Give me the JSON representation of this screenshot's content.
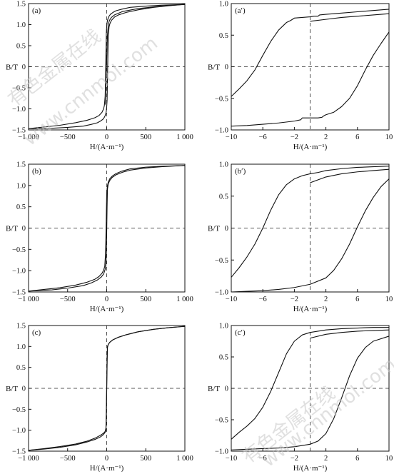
{
  "figure": {
    "watermark_cn": "有色金属在线",
    "watermark_url": "www.cnnmol.com"
  },
  "chart_data": [
    {
      "id": "a",
      "panel_label": "(a)",
      "type": "line",
      "xlabel": "H/(A·m⁻¹)",
      "ylabel": "B/T",
      "xlim": [
        -1000,
        1000
      ],
      "ylim": [
        -1.5,
        1.5
      ],
      "xticks": [
        -1000,
        -500,
        0,
        500,
        1000
      ],
      "xtick_labels": [
        "−1 000",
        "−500",
        "0",
        "500",
        "1 000"
      ],
      "yticks": [
        -1.5,
        -1.0,
        -0.5,
        0,
        0.5,
        1.0,
        1.5
      ],
      "ytick_labels": [
        "−1.5",
        "−1.0",
        "−0.5",
        "0",
        "0.5",
        "1.0",
        "1.5"
      ],
      "dashed_zero_lines": true,
      "series": [
        {
          "x": [
            -1000,
            -800,
            -600,
            -400,
            -250,
            -150,
            -100,
            -60,
            -40,
            -30,
            -20,
            -15,
            -10,
            -5,
            0,
            5,
            10,
            20,
            30,
            50,
            80,
            120,
            200,
            300,
            500,
            700,
            1000
          ],
          "y": [
            -1.47,
            -1.43,
            -1.39,
            -1.33,
            -1.27,
            -1.21,
            -1.16,
            -1.08,
            -1.0,
            -0.92,
            -0.7,
            -0.3,
            0.3,
            0.8,
            0.95,
            1.05,
            1.1,
            1.16,
            1.2,
            1.25,
            1.29,
            1.33,
            1.37,
            1.41,
            1.44,
            1.46,
            1.48
          ]
        },
        {
          "x": [
            1000,
            800,
            600,
            400,
            250,
            150,
            100,
            60,
            40,
            30,
            20,
            15,
            10,
            5,
            0,
            -5,
            -10,
            -20,
            -30,
            -50,
            -80,
            -120,
            -200,
            -300,
            -500,
            -700,
            -1000
          ],
          "y": [
            1.48,
            1.45,
            1.41,
            1.35,
            1.29,
            1.23,
            1.18,
            1.1,
            1.02,
            0.94,
            0.72,
            0.3,
            -0.3,
            -0.8,
            -0.95,
            -1.05,
            -1.1,
            -1.16,
            -1.2,
            -1.25,
            -1.29,
            -1.33,
            -1.37,
            -1.41,
            -1.44,
            -1.46,
            -1.47
          ]
        },
        {
          "x": [
            -20,
            -10,
            0,
            10,
            20,
            35,
            60,
            100,
            200,
            400,
            700,
            1000
          ],
          "y": [
            -0.9,
            -0.4,
            0.2,
            0.75,
            1.0,
            1.1,
            1.17,
            1.23,
            1.31,
            1.38,
            1.44,
            1.48
          ]
        }
      ]
    },
    {
      "id": "a2",
      "panel_label": "(a′)",
      "type": "line",
      "xlabel": "H/(A·m⁻¹)",
      "ylabel": "B/T",
      "xlim": [
        -10,
        10
      ],
      "ylim": [
        -1.0,
        1.0
      ],
      "xticks": [
        -10,
        -6,
        -2,
        2,
        6,
        10
      ],
      "xtick_labels": [
        "−10",
        "−6",
        "−2",
        "2",
        "6",
        "10"
      ],
      "yticks": [
        -1.0,
        -0.5,
        0,
        0.5,
        1.0
      ],
      "ytick_labels": [
        "−1.0",
        "−0.5",
        "0",
        "0.5",
        "1.0"
      ],
      "dashed_zero_lines": true,
      "series": [
        {
          "x": [
            10,
            8,
            6,
            4,
            2,
            1.2,
            1.0,
            0.5,
            0,
            -1,
            -2,
            -2.5,
            -3,
            -4,
            -5,
            -6,
            -7,
            -8,
            -9,
            -10
          ],
          "y": [
            0.91,
            0.89,
            0.87,
            0.85,
            0.83,
            0.82,
            0.8,
            0.8,
            0.79,
            0.78,
            0.77,
            0.73,
            0.7,
            0.58,
            0.4,
            0.18,
            -0.05,
            -0.22,
            -0.35,
            -0.47
          ]
        },
        {
          "x": [
            -10,
            -8,
            -6,
            -4,
            -2,
            -1.2,
            -1.0,
            0,
            1,
            1.5,
            1.7,
            2,
            3,
            4,
            5,
            6,
            7,
            8,
            9,
            10
          ],
          "y": [
            -0.94,
            -0.93,
            -0.91,
            -0.89,
            -0.86,
            -0.84,
            -0.81,
            -0.81,
            -0.81,
            -0.8,
            -0.78,
            -0.76,
            -0.72,
            -0.63,
            -0.5,
            -0.3,
            -0.05,
            0.18,
            0.37,
            0.55
          ]
        },
        {
          "x": [
            0,
            2,
            4,
            6,
            8,
            10
          ],
          "y": [
            0.72,
            0.75,
            0.78,
            0.8,
            0.82,
            0.84
          ]
        }
      ]
    },
    {
      "id": "b",
      "panel_label": "(b)",
      "type": "line",
      "xlabel": "H/(A·m⁻¹)",
      "ylabel": "B/T",
      "xlim": [
        -1000,
        1000
      ],
      "ylim": [
        -1.5,
        1.5
      ],
      "xticks": [
        -1000,
        -500,
        0,
        500,
        1000
      ],
      "xtick_labels": [
        "−1 000",
        "−500",
        "0",
        "500",
        "1 000"
      ],
      "yticks": [
        -1.5,
        -1.0,
        -0.5,
        0,
        0.5,
        1.0,
        1.5
      ],
      "ytick_labels": [
        "−1.5",
        "−1.0",
        "−0.5",
        "0",
        "0.5",
        "1.0",
        "1.5"
      ],
      "dashed_zero_lines": true,
      "series": [
        {
          "x": [
            -1000,
            -800,
            -600,
            -400,
            -250,
            -150,
            -100,
            -60,
            -40,
            -25,
            -15,
            -10,
            -5,
            0,
            5,
            10,
            20,
            40,
            70,
            120,
            200,
            300,
            500,
            700,
            1000
          ],
          "y": [
            -1.48,
            -1.44,
            -1.4,
            -1.34,
            -1.27,
            -1.2,
            -1.14,
            -1.06,
            -0.99,
            -0.9,
            -0.6,
            -0.2,
            0.3,
            0.8,
            0.92,
            1.0,
            1.08,
            1.16,
            1.22,
            1.28,
            1.34,
            1.39,
            1.43,
            1.45,
            1.47
          ]
        },
        {
          "x": [
            1000,
            700,
            500,
            300,
            200,
            120,
            70,
            40,
            20,
            10,
            5,
            0,
            -5,
            -10,
            -20,
            -40,
            -70,
            -120,
            -200,
            -300,
            -500,
            -700,
            -1000
          ],
          "y": [
            1.47,
            1.44,
            1.41,
            1.36,
            1.31,
            1.25,
            1.19,
            1.12,
            1.04,
            0.92,
            0.5,
            -0.1,
            -0.6,
            -0.85,
            -0.97,
            -1.08,
            -1.15,
            -1.22,
            -1.29,
            -1.35,
            -1.41,
            -1.45,
            -1.48
          ]
        }
      ]
    },
    {
      "id": "b2",
      "panel_label": "(b′)",
      "type": "line",
      "xlabel": "H/(A·m⁻¹)",
      "ylabel": "B/T",
      "xlim": [
        -10,
        10
      ],
      "ylim": [
        -1.0,
        1.0
      ],
      "xticks": [
        -10,
        -6,
        -2,
        2,
        6,
        10
      ],
      "xtick_labels": [
        "−10",
        "−6",
        "−2",
        "2",
        "6",
        "10"
      ],
      "yticks": [
        -1.0,
        -0.5,
        0,
        0.5,
        1.0
      ],
      "ytick_labels": [
        "−1.0",
        "−0.5",
        "0",
        "0.5",
        "1.0"
      ],
      "dashed_zero_lines": true,
      "series": [
        {
          "x": [
            10,
            8,
            6,
            4,
            2,
            1,
            0,
            -1,
            -2,
            -3,
            -4,
            -5,
            -6,
            -7,
            -8,
            -9,
            -10
          ],
          "y": [
            0.97,
            0.96,
            0.95,
            0.93,
            0.9,
            0.87,
            0.85,
            0.82,
            0.77,
            0.68,
            0.52,
            0.28,
            0.0,
            -0.25,
            -0.45,
            -0.62,
            -0.77
          ]
        },
        {
          "x": [
            -10,
            -8,
            -6,
            -4,
            -2,
            0,
            2,
            3,
            4,
            5,
            6,
            7,
            8,
            9,
            10
          ],
          "y": [
            -1.0,
            -0.99,
            -0.98,
            -0.96,
            -0.93,
            -0.88,
            -0.78,
            -0.66,
            -0.48,
            -0.25,
            0.02,
            0.27,
            0.48,
            0.65,
            0.77
          ]
        },
        {
          "x": [
            0,
            2,
            4,
            6,
            8,
            10
          ],
          "y": [
            0.71,
            0.8,
            0.85,
            0.88,
            0.9,
            0.92
          ]
        }
      ]
    },
    {
      "id": "c",
      "panel_label": "(c)",
      "type": "line",
      "xlabel": "H/(A·m⁻¹)",
      "ylabel": "B/T",
      "xlim": [
        -1000,
        1000
      ],
      "ylim": [
        -1.5,
        1.5
      ],
      "xticks": [
        -1000,
        -500,
        0,
        500,
        1000
      ],
      "xtick_labels": [
        "−1 000",
        "−500",
        "0",
        "500",
        "1 000"
      ],
      "yticks": [
        -1.5,
        -1.0,
        -0.5,
        0,
        0.5,
        1.0,
        1.5
      ],
      "ytick_labels": [
        "−1.5",
        "−1.0",
        "−0.5",
        "0",
        "0.5",
        "1.0",
        "1.5"
      ],
      "dashed_zero_lines": true,
      "series": [
        {
          "x": [
            -1000,
            -800,
            -600,
            -400,
            -250,
            -150,
            -80,
            -40,
            -20,
            -10,
            -5,
            0,
            5,
            10,
            20,
            40,
            80,
            150,
            250,
            400,
            600,
            800,
            1000
          ],
          "y": [
            -1.48,
            -1.44,
            -1.39,
            -1.33,
            -1.26,
            -1.19,
            -1.12,
            -1.07,
            -1.03,
            -0.95,
            -0.5,
            0.1,
            0.8,
            1.0,
            1.05,
            1.1,
            1.16,
            1.22,
            1.28,
            1.35,
            1.41,
            1.45,
            1.48
          ]
        },
        {
          "x": [
            1000,
            800,
            600,
            400,
            250,
            150,
            80,
            40,
            20,
            10,
            5,
            0,
            -5,
            -10,
            -20,
            -40,
            -80,
            -150,
            -250,
            -400,
            -600,
            -800,
            -1000
          ],
          "y": [
            1.48,
            1.45,
            1.41,
            1.35,
            1.28,
            1.22,
            1.16,
            1.1,
            1.05,
            0.98,
            0.5,
            -0.1,
            -0.8,
            -1.0,
            -1.05,
            -1.1,
            -1.16,
            -1.22,
            -1.28,
            -1.35,
            -1.41,
            -1.45,
            -1.48
          ]
        }
      ]
    },
    {
      "id": "c2",
      "panel_label": "(c′)",
      "type": "line",
      "xlabel": "H/(A·m⁻¹)",
      "ylabel": "B/T",
      "xlim": [
        -10,
        10
      ],
      "ylim": [
        -1.0,
        1.0
      ],
      "xticks": [
        -10,
        -6,
        -2,
        2,
        6,
        10
      ],
      "xtick_labels": [
        "−10",
        "−6",
        "−2",
        "2",
        "6",
        "10"
      ],
      "yticks": [
        -1.0,
        -0.5,
        0,
        0.5,
        1.0
      ],
      "ytick_labels": [
        "−1.0",
        "−0.5",
        "0",
        "0.5",
        "1.0"
      ],
      "dashed_zero_lines": true,
      "series": [
        {
          "x": [
            10,
            8,
            6,
            4,
            2,
            0,
            -1,
            -2,
            -3,
            -4,
            -5,
            -6,
            -7,
            -8,
            -9,
            -10
          ],
          "y": [
            0.97,
            0.97,
            0.96,
            0.95,
            0.93,
            0.89,
            0.85,
            0.75,
            0.55,
            0.25,
            -0.05,
            -0.3,
            -0.48,
            -0.6,
            -0.7,
            -0.81
          ]
        },
        {
          "x": [
            -10,
            -8,
            -6,
            -4,
            -2,
            0,
            1,
            2,
            3,
            4,
            5,
            6,
            7,
            8,
            10
          ],
          "y": [
            -0.98,
            -0.97,
            -0.96,
            -0.95,
            -0.93,
            -0.89,
            -0.84,
            -0.72,
            -0.48,
            -0.15,
            0.2,
            0.48,
            0.65,
            0.75,
            0.83
          ]
        },
        {
          "x": [
            0,
            2,
            4,
            6,
            8,
            10
          ],
          "y": [
            0.8,
            0.86,
            0.89,
            0.91,
            0.92,
            0.93
          ]
        }
      ]
    }
  ]
}
